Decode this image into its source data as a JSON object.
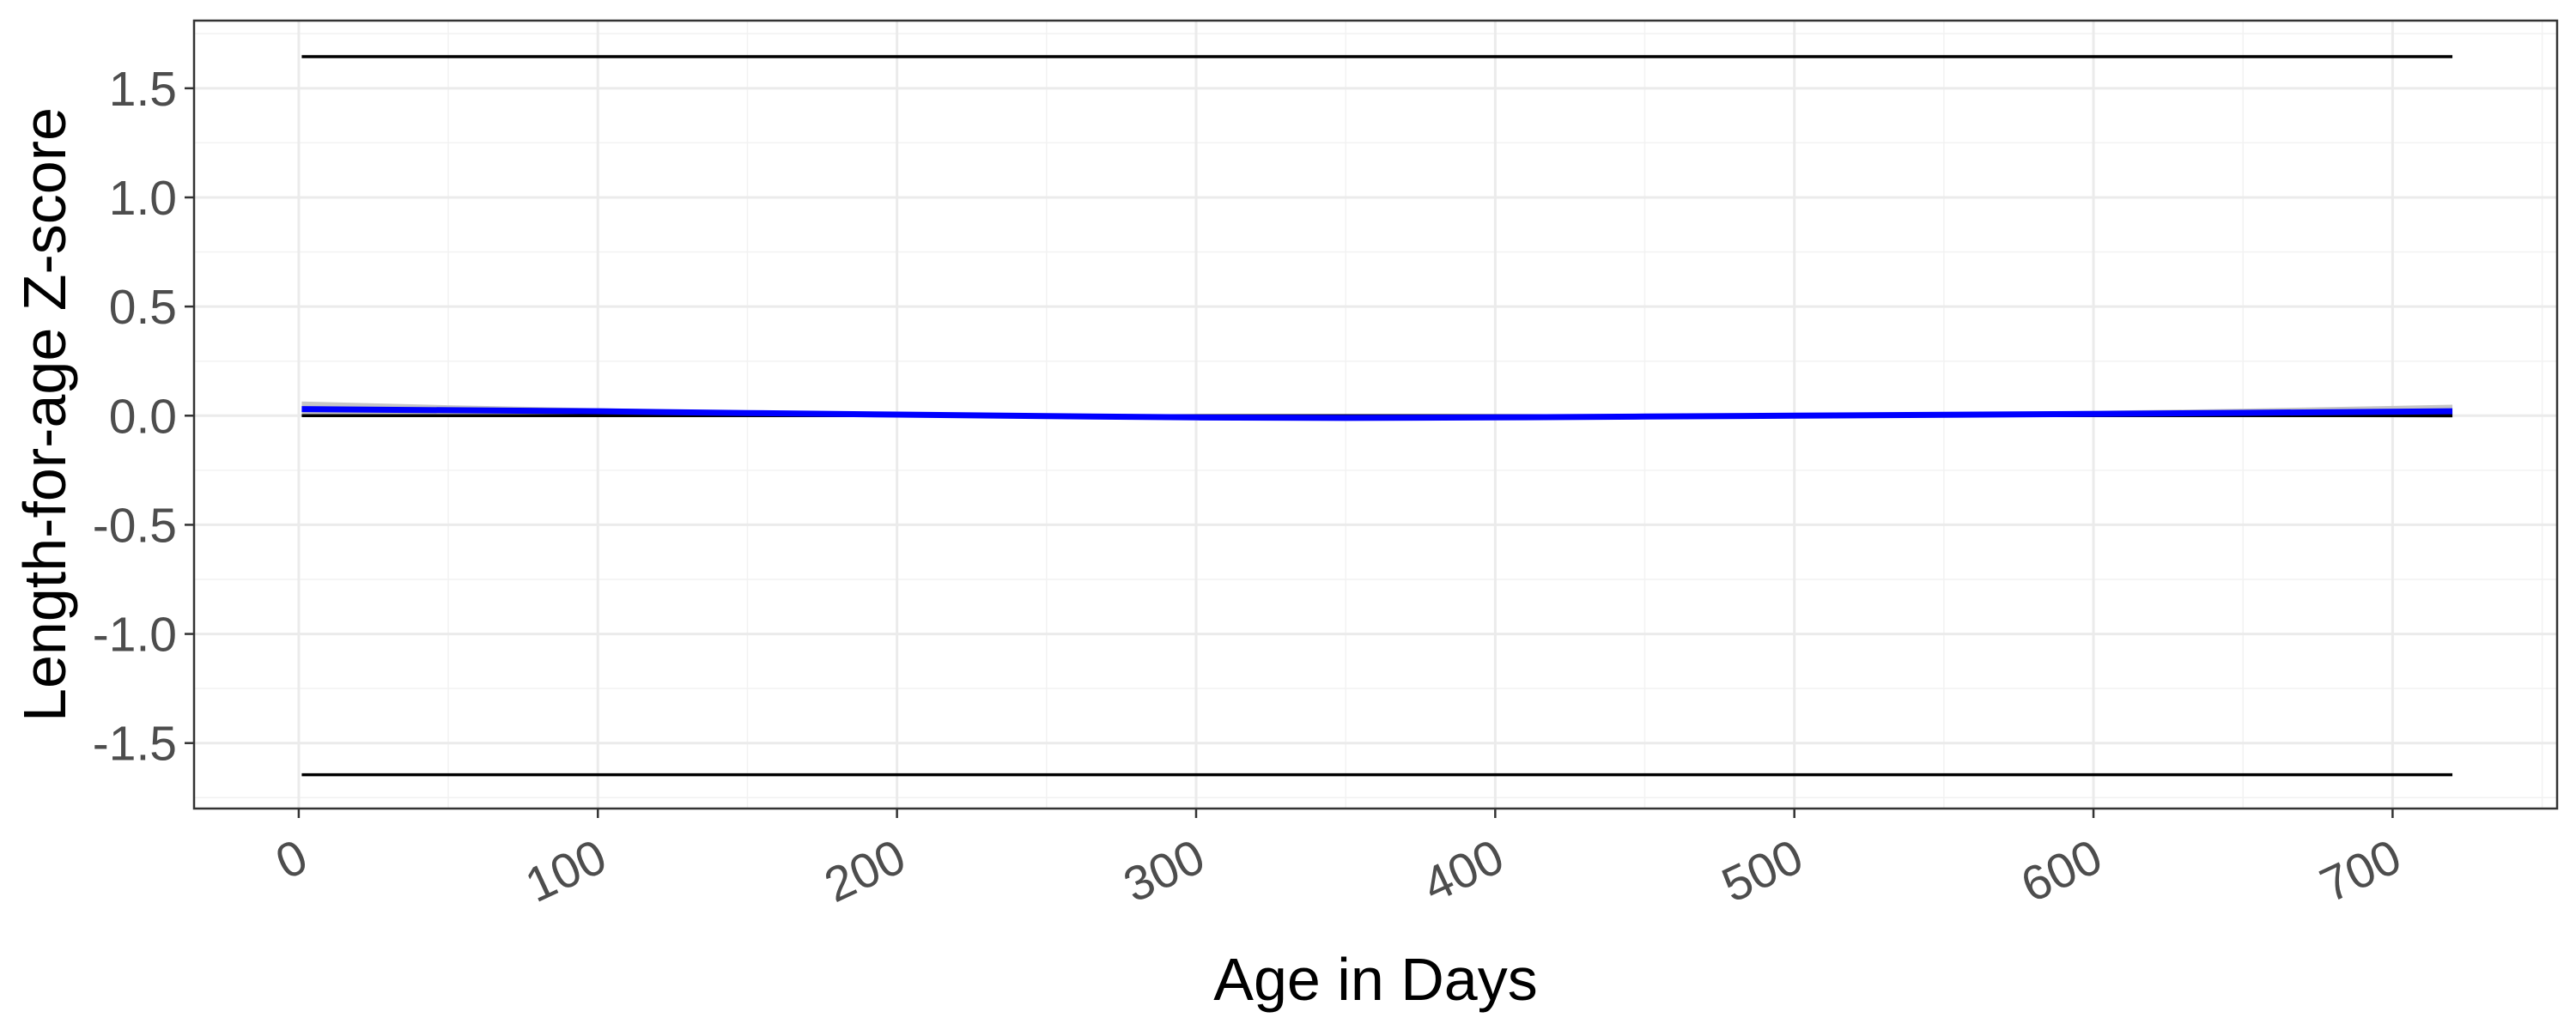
{
  "chart_data": {
    "type": "line",
    "title": "",
    "xlabel": "Age in Days",
    "ylabel": "Length-for-age Z-score",
    "xlim": [
      -35,
      755
    ],
    "ylim": [
      -1.8,
      1.81
    ],
    "x_ticks": [
      0,
      100,
      200,
      300,
      400,
      500,
      600,
      700
    ],
    "x_tick_labels": [
      "0",
      "100",
      "200",
      "300",
      "400",
      "500",
      "600",
      "700"
    ],
    "y_ticks": [
      1.5,
      1.0,
      0.5,
      0.0,
      -0.5,
      -1.0,
      -1.5
    ],
    "y_tick_labels": [
      "1.5",
      "1.0",
      "0.5",
      "0.0",
      "-0.5",
      "-1.0",
      "-1.5"
    ],
    "grid": true,
    "theme": "bw",
    "reference_lines": [
      {
        "y": 1.645,
        "x_range": [
          1,
          720
        ],
        "color": "#000000"
      },
      {
        "y": 0.0,
        "x_range": [
          1,
          720
        ],
        "color": "#000000"
      },
      {
        "y": -1.645,
        "x_range": [
          1,
          720
        ],
        "color": "#000000"
      }
    ],
    "series": [
      {
        "x": [
          1,
          50,
          100,
          150,
          200,
          250,
          300,
          350,
          400,
          450,
          500,
          550,
          600,
          650,
          720
        ],
        "y": [
          0.03,
          0.025,
          0.02,
          0.012,
          0.005,
          -0.002,
          -0.008,
          -0.01,
          -0.008,
          -0.004,
          0.0,
          0.004,
          0.008,
          0.013,
          0.02
        ],
        "lower": [
          0.0,
          0.005,
          0.008,
          0.003,
          -0.003,
          -0.01,
          -0.016,
          -0.018,
          -0.016,
          -0.012,
          -0.008,
          -0.006,
          -0.004,
          -0.004,
          -0.01
        ],
        "upper": [
          0.065,
          0.048,
          0.034,
          0.022,
          0.013,
          0.006,
          0.0,
          -0.002,
          0.0,
          0.004,
          0.008,
          0.014,
          0.022,
          0.032,
          0.05
        ],
        "color": "#0000ff",
        "band_color": "#bfbfbf"
      }
    ]
  }
}
